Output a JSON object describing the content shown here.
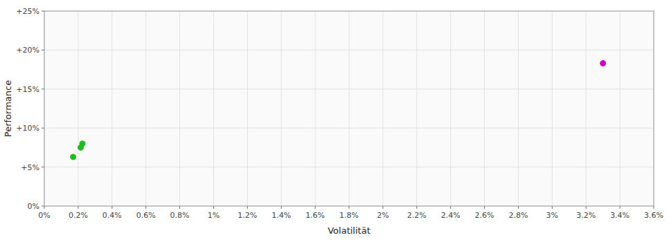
{
  "chart_data": {
    "type": "scatter",
    "xlabel": "Volatilität",
    "ylabel": "Performance",
    "series": [
      {
        "color": "#22bb22",
        "x": [
          0.0017,
          0.00215,
          0.00225
        ],
        "values": [
          0.063,
          0.075,
          0.08
        ]
      },
      {
        "color": "#cc00cc",
        "x": [
          0.033
        ],
        "values": [
          0.183
        ]
      }
    ],
    "xlim": [
      0,
      0.036
    ],
    "ylim": [
      0,
      0.25
    ],
    "xticks": [
      {
        "value": 0,
        "label": "0%"
      },
      {
        "value": 0.002,
        "label": "0.2%"
      },
      {
        "value": 0.004,
        "label": "0.4%"
      },
      {
        "value": 0.006,
        "label": "0.6%"
      },
      {
        "value": 0.008,
        "label": "0.8%"
      },
      {
        "value": 0.01,
        "label": "1%"
      },
      {
        "value": 0.012,
        "label": "1.2%"
      },
      {
        "value": 0.014,
        "label": "1.4%"
      },
      {
        "value": 0.016,
        "label": "1.6%"
      },
      {
        "value": 0.018,
        "label": "1.8%"
      },
      {
        "value": 0.02,
        "label": "2%"
      },
      {
        "value": 0.022,
        "label": "2.2%"
      },
      {
        "value": 0.024,
        "label": "2.4%"
      },
      {
        "value": 0.026,
        "label": "2.6%"
      },
      {
        "value": 0.028,
        "label": "2.8%"
      },
      {
        "value": 0.03,
        "label": "3%"
      },
      {
        "value": 0.032,
        "label": "3.2%"
      },
      {
        "value": 0.034,
        "label": "3.4%"
      },
      {
        "value": 0.036,
        "label": "3.6%"
      }
    ],
    "yticks": [
      {
        "value": 0,
        "label": "0%"
      },
      {
        "value": 0.05,
        "label": "+5%"
      },
      {
        "value": 0.1,
        "label": "+10%"
      },
      {
        "value": 0.15,
        "label": "+15%"
      },
      {
        "value": 0.2,
        "label": "+20%"
      },
      {
        "value": 0.25,
        "label": "+25%"
      }
    ],
    "grid": true
  }
}
